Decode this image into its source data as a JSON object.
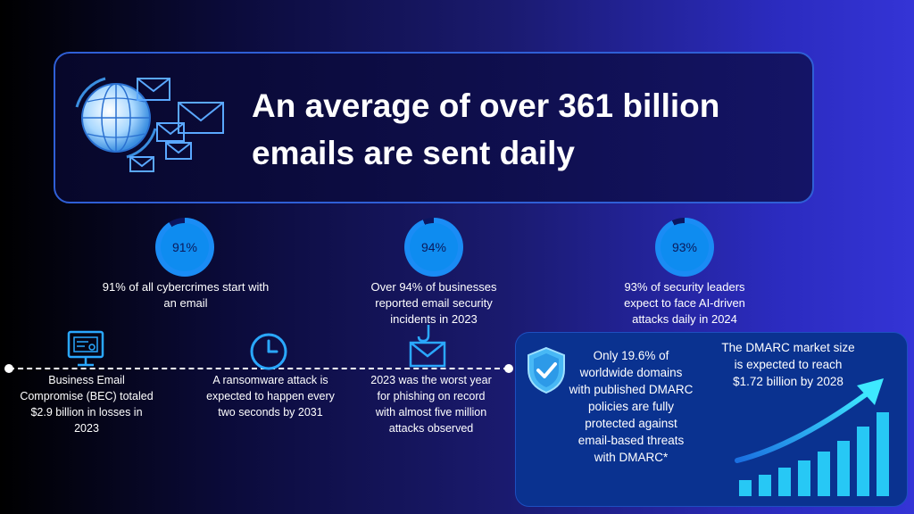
{
  "hero": {
    "title": "An average of over 361 billion emails are sent daily"
  },
  "stats": [
    {
      "percent_label": "91%",
      "value": 91,
      "text": "91% of all cybercrimes start with an email"
    },
    {
      "percent_label": "94%",
      "value": 94,
      "text": "Over 94% of businesses reported email security incidents in 2023"
    },
    {
      "percent_label": "93%",
      "value": 93,
      "text": "93% of security leaders expect to face AI-driven attacks daily in 2024"
    }
  ],
  "timeline": [
    {
      "icon": "computer-icon",
      "text": "Business Email Compromise (BEC) totaled $2.9 billion in losses in 2023"
    },
    {
      "icon": "clock-icon",
      "text": "A ransomware attack is expected to happen every two seconds by 2031"
    },
    {
      "icon": "phishing-hook-icon",
      "text": "2023 was the worst year for phishing on record with almost five million attacks observed"
    }
  ],
  "dmarc_panel": {
    "protected_text": "Only 19.6% of worldwide domains with published DMARC policies are fully protected against email-based threats with DMARC*",
    "market_text": "The DMARC market size is expected to reach $1.72 billion by 2028",
    "shield_icon": "shield-check-icon",
    "growth_icon": "growth-bar-chart-icon"
  },
  "colors": {
    "accent": "#0e8cf0",
    "ring": "#1a6fe0",
    "panel": "#0a3290",
    "bar": "#27c8f5"
  }
}
